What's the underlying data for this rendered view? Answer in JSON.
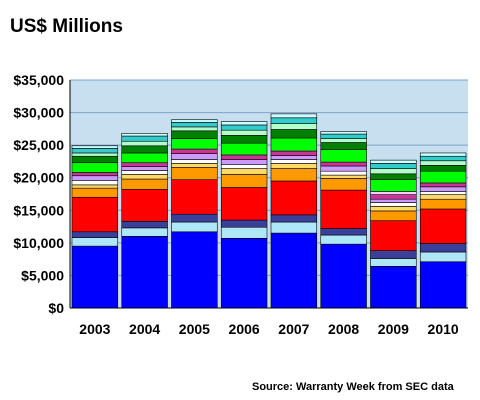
{
  "chart_data": {
    "type": "bar",
    "stacked": true,
    "title": "US$ Millions",
    "source": "Source: Warranty Week from SEC data",
    "categories": [
      "2003",
      "2004",
      "2005",
      "2006",
      "2007",
      "2008",
      "2009",
      "2010"
    ],
    "y_tick_labels": [
      "$0",
      "$5,000",
      "$10,000",
      "$15,000",
      "$20,000",
      "$25,000",
      "$30,000",
      "$35,000"
    ],
    "ylim": [
      0,
      35000
    ],
    "y_tick_step": 5000,
    "grid": true,
    "legend": "none",
    "plot_background": "#c8dff0",
    "gridline_color": "#7fa3c6",
    "series": [
      {
        "color": "#0000ff",
        "values": [
          9500,
          11000,
          11700,
          10700,
          11500,
          9800,
          6400,
          7100
        ]
      },
      {
        "color": "#aee7f7",
        "values": [
          1300,
          1300,
          1500,
          1700,
          1700,
          1400,
          1200,
          1500
        ]
      },
      {
        "color": "#3a3f9a",
        "values": [
          900,
          1000,
          1200,
          1100,
          1100,
          1000,
          1200,
          1300
        ]
      },
      {
        "color": "#ff0000",
        "values": [
          5300,
          4900,
          5300,
          5000,
          5200,
          5900,
          4600,
          5300
        ]
      },
      {
        "color": "#ff9900",
        "values": [
          1400,
          1600,
          1900,
          2000,
          1900,
          1800,
          1500,
          1500
        ]
      },
      {
        "color": "#ffd966",
        "values": [
          500,
          700,
          600,
          900,
          800,
          500,
          700,
          700
        ]
      },
      {
        "color": "#ffffff",
        "values": [
          700,
          600,
          600,
          600,
          600,
          600,
          600,
          500
        ]
      },
      {
        "color": "#cc99ff",
        "values": [
          700,
          600,
          900,
          800,
          600,
          800,
          500,
          700
        ]
      },
      {
        "color": "#cc3399",
        "values": [
          500,
          600,
          700,
          700,
          700,
          600,
          700,
          600
        ]
      },
      {
        "color": "#ffccff",
        "values": [
          0,
          0,
          0,
          0,
          0,
          0,
          500,
          0
        ]
      },
      {
        "color": "#00ff00",
        "values": [
          1500,
          1500,
          1600,
          1800,
          2000,
          1900,
          1800,
          1800
        ]
      },
      {
        "color": "#008000",
        "values": [
          1000,
          1100,
          1200,
          1200,
          1300,
          1100,
          900,
          900
        ]
      },
      {
        "color": "#b3ffcc",
        "values": [
          500,
          700,
          600,
          800,
          900,
          600,
          800,
          700
        ]
      },
      {
        "color": "#33cccc",
        "values": [
          700,
          800,
          700,
          800,
          900,
          700,
          800,
          700
        ]
      },
      {
        "color": "#ccffff",
        "values": [
          400,
          400,
          400,
          500,
          600,
          400,
          500,
          500
        ]
      }
    ]
  }
}
